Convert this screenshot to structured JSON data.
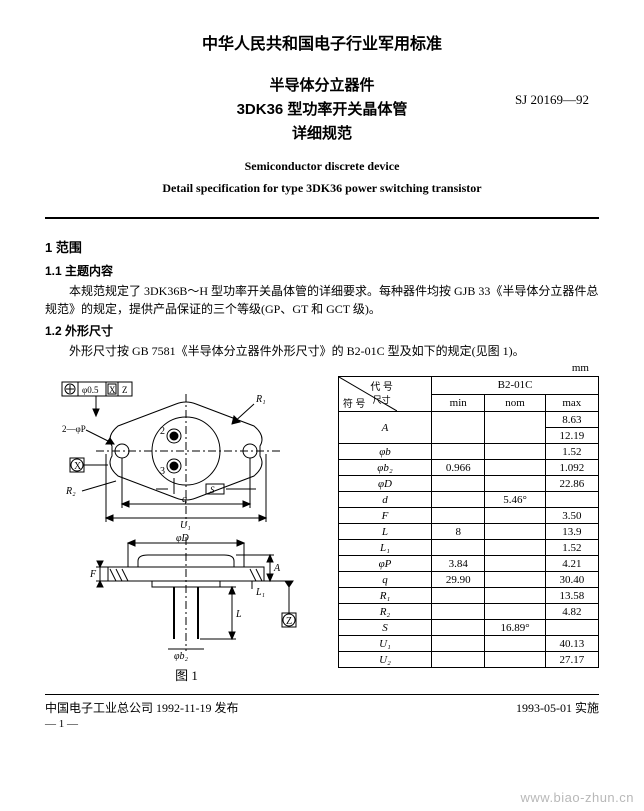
{
  "header": "中华人民共和国电子行业军用标准",
  "title": {
    "line1": "半导体分立器件",
    "line2": "3DK36 型功率开关晶体管",
    "line3": "详细规范"
  },
  "std_code": "SJ 20169—92",
  "en_title": {
    "line1": "Semiconductor discrete device",
    "line2": "Detail specification for type 3DK36 power switching transistor"
  },
  "section1": {
    "num_title": "1  范围",
    "sub1_title": "1.1  主题内容",
    "sub1_body": "本规范规定了 3DK36B～H 型功率开关晶体管的详细要求。每种器件均按 GJB 33《半导体分立器件总规范》的规定，提供产品保证的三个等级(GP、GT 和 GCT 级)。",
    "sub2_title": "1.2  外形尺寸",
    "sub2_body": "外形尺寸按 GB 7581《半导体分立器件外形尺寸》的 B2-01C 型及如下的规定(见图 1)。"
  },
  "unit": "mm",
  "dim_table": {
    "header_diag_top": "代 号",
    "header_diag_bot": "符 号",
    "header_diag_right": "尺寸",
    "header_model": "B2-01C",
    "cols": [
      "min",
      "nom",
      "max"
    ],
    "rows": [
      {
        "sym": "A",
        "min": "",
        "nom": "",
        "max": "8.63\n12.19"
      },
      {
        "sym": "φb",
        "min": "",
        "nom": "",
        "max": "1.52"
      },
      {
        "sym": "φb₂",
        "min": "0.966",
        "nom": "",
        "max": "1.092"
      },
      {
        "sym": "φD",
        "min": "",
        "nom": "",
        "max": "22.86"
      },
      {
        "sym": "d",
        "min": "",
        "nom": "5.46°",
        "max": ""
      },
      {
        "sym": "F",
        "min": "",
        "nom": "",
        "max": "3.50"
      },
      {
        "sym": "L",
        "min": "8",
        "nom": "",
        "max": "13.9"
      },
      {
        "sym": "L₁",
        "min": "",
        "nom": "",
        "max": "1.52"
      },
      {
        "sym": "φP",
        "min": "3.84",
        "nom": "",
        "max": "4.21"
      },
      {
        "sym": "q",
        "min": "29.90",
        "nom": "",
        "max": "30.40"
      },
      {
        "sym": "R₁",
        "min": "",
        "nom": "",
        "max": "13.58"
      },
      {
        "sym": "R₂",
        "min": "",
        "nom": "",
        "max": "4.82"
      },
      {
        "sym": "S",
        "min": "",
        "nom": "16.89°",
        "max": ""
      },
      {
        "sym": "U₁",
        "min": "",
        "nom": "",
        "max": "40.13"
      },
      {
        "sym": "U₂",
        "min": "",
        "nom": "",
        "max": "27.17"
      }
    ]
  },
  "fig_caption": "图 1",
  "drawing_labels": {
    "tol1": "φ0.5",
    "tol1sym": "X",
    "tol1ref": "Z",
    "x_datum": "X",
    "z_datum": "Z",
    "r1": "R₁",
    "r2": "R₂",
    "s": "S",
    "q": "q",
    "u1": "U₁",
    "phiD": "φD",
    "phib2": "φb₂",
    "A": "A",
    "L": "L",
    "L1": "L₁",
    "F": "F",
    "pin2": "2",
    "pin3": "3",
    "twophiP": "2—φP"
  },
  "footer": {
    "left": "中国电子工业总公司 1992-11-19 发布",
    "right": "1993-05-01 实施",
    "page": "— 1 —"
  },
  "watermark": "www.biao-zhun.cn",
  "colors": {
    "text": "#000000",
    "bg": "#ffffff",
    "watermark": "#b8b8b8",
    "line": "#000000"
  }
}
